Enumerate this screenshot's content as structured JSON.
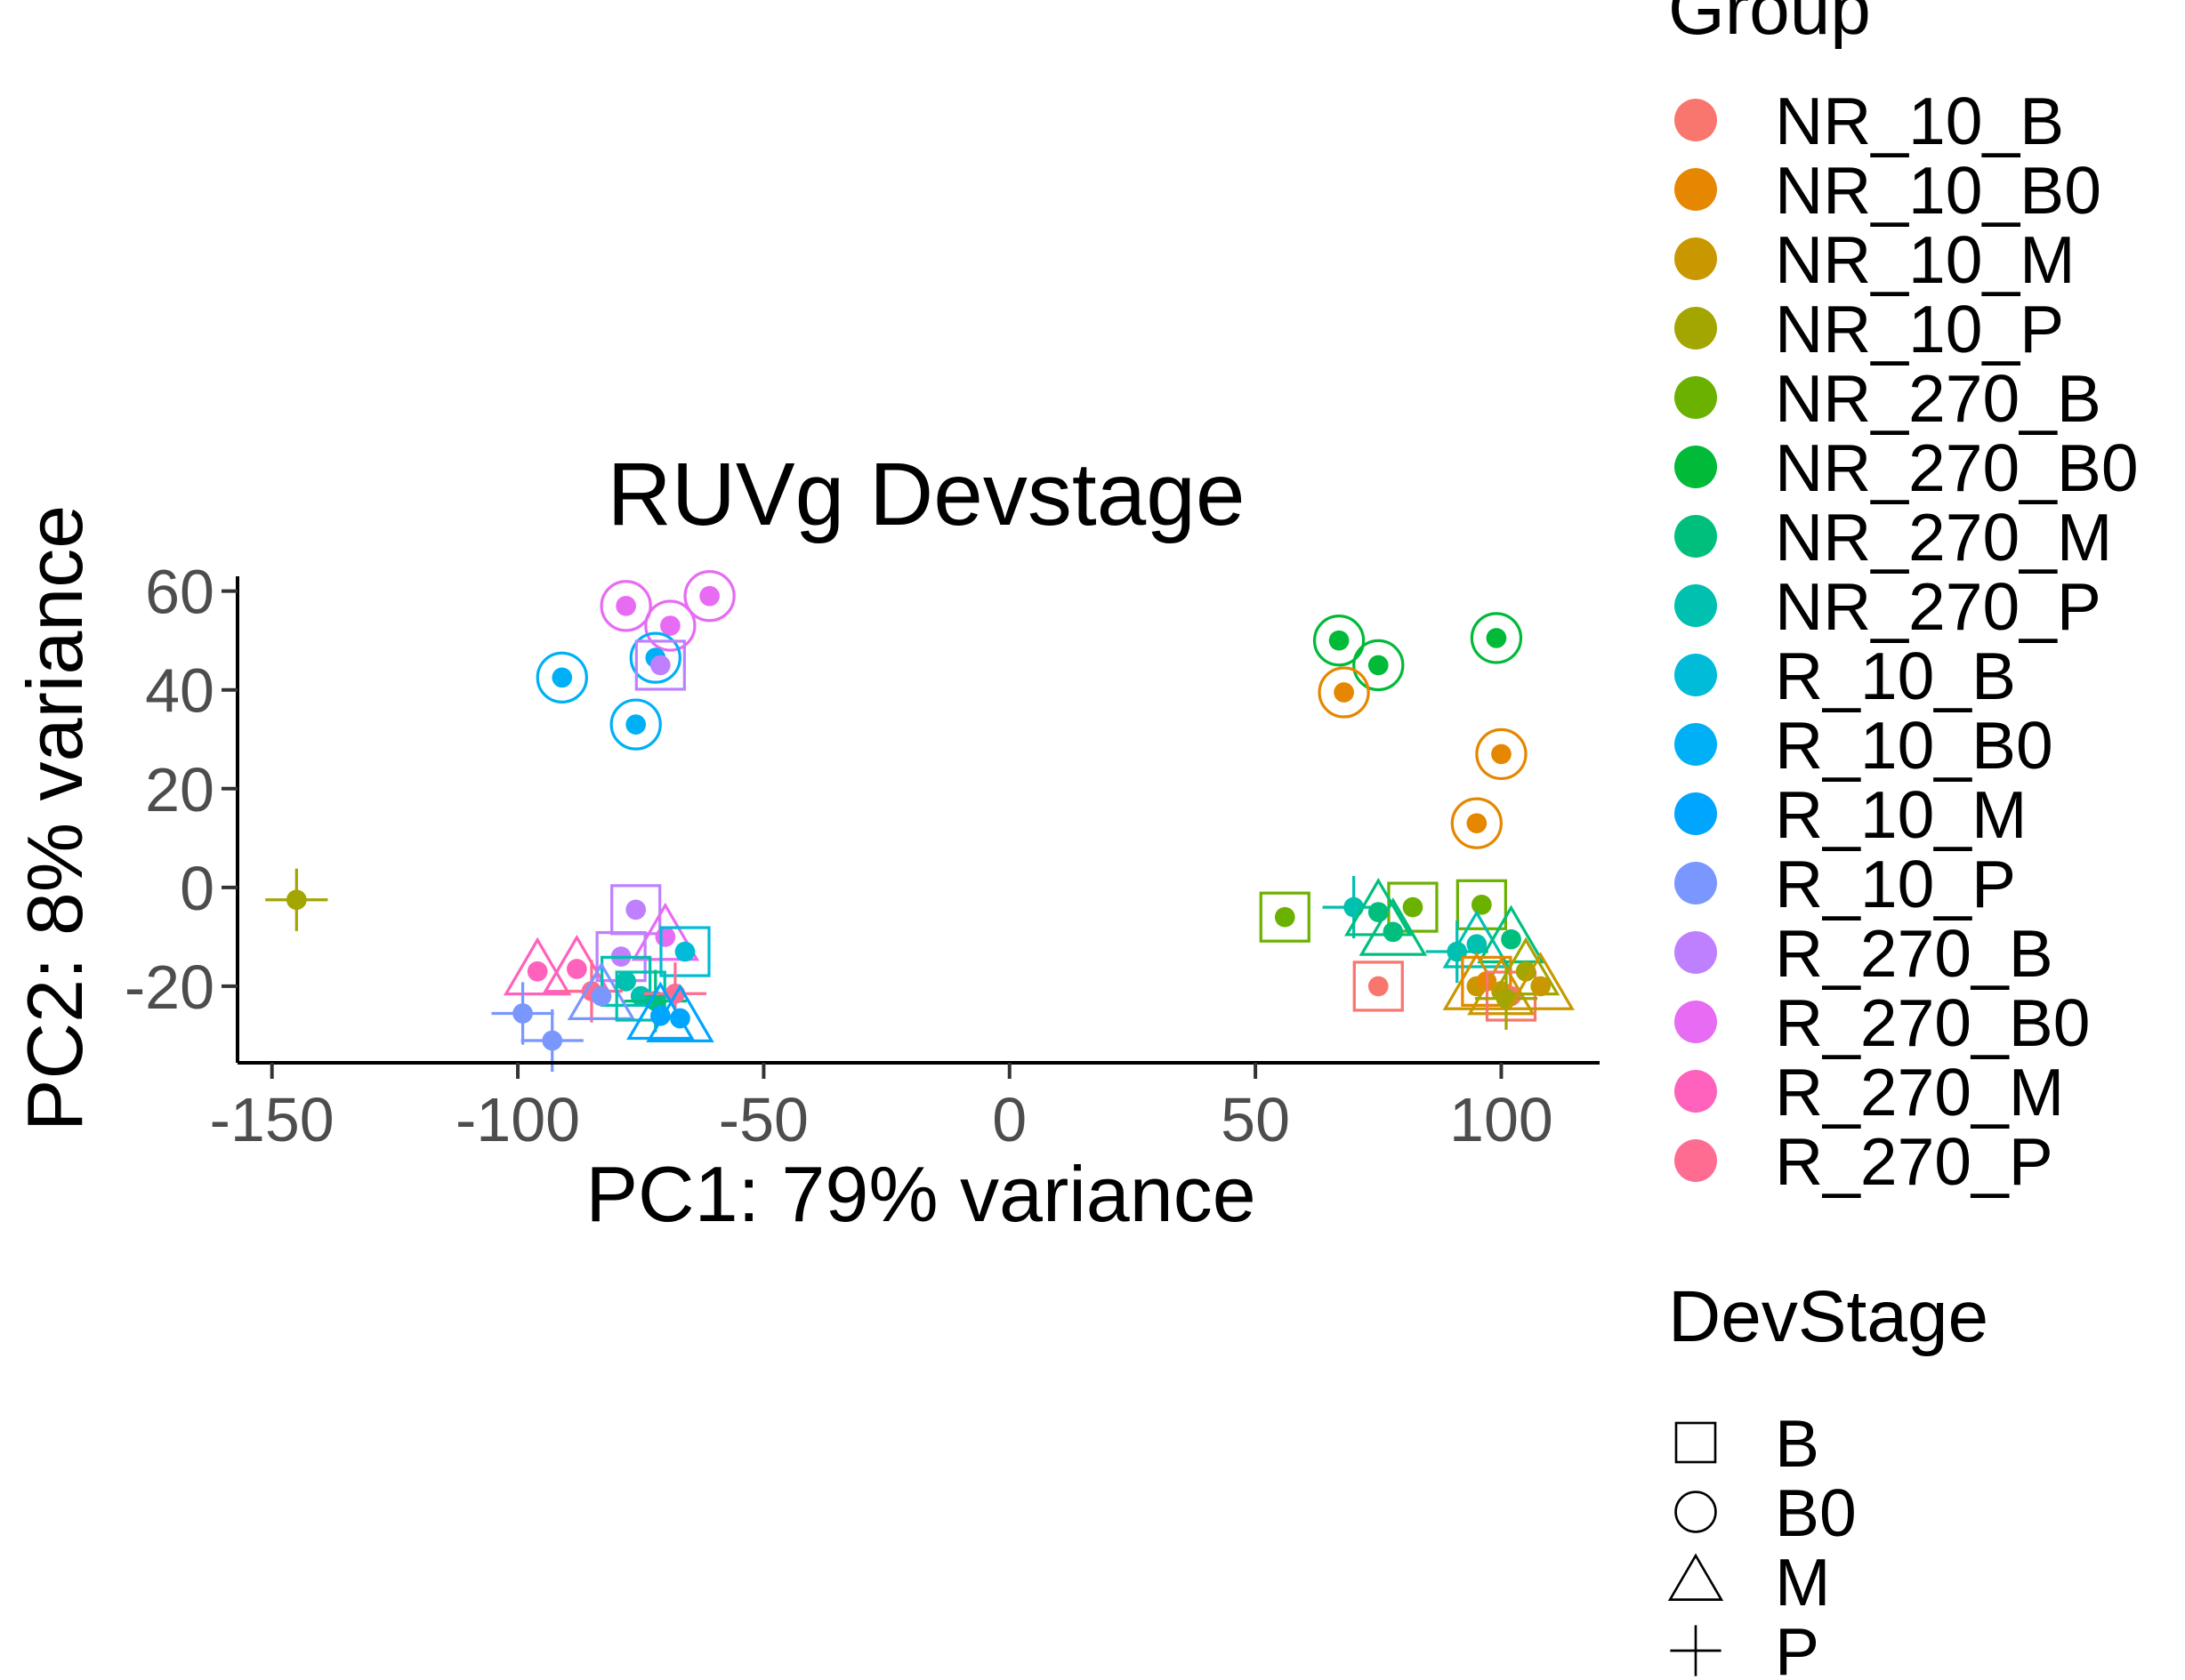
{
  "chart_data": {
    "type": "scatter",
    "title": "RUVg Devstage",
    "xlabel": "PC1: 79% variance",
    "ylabel": "PC2: 8% variance",
    "xlim": [
      -157,
      120
    ],
    "ylim": [
      -35.5,
      63
    ],
    "x_ticks": [
      -150,
      -100,
      -50,
      0,
      50,
      100
    ],
    "y_ticks": [
      -20,
      0,
      20,
      40,
      60
    ],
    "x_tick_labels": [
      "-150",
      "-100",
      "-50",
      "0",
      "50",
      "100"
    ],
    "y_tick_labels": [
      "-20",
      "0",
      "20",
      "40",
      "60"
    ],
    "grid": false,
    "legend_placement": "right",
    "legend_group_title": "Group",
    "legend_shape_title": "DevStage",
    "groups": [
      {
        "name": "NR_10_B",
        "color": "#F8766D"
      },
      {
        "name": "NR_10_B0",
        "color": "#E58700"
      },
      {
        "name": "NR_10_M",
        "color": "#C99800"
      },
      {
        "name": "NR_10_P",
        "color": "#A3A500"
      },
      {
        "name": "NR_270_B",
        "color": "#6BB100"
      },
      {
        "name": "NR_270_B0",
        "color": "#00BA38"
      },
      {
        "name": "NR_270_M",
        "color": "#00BF7D"
      },
      {
        "name": "NR_270_P",
        "color": "#00C0AF"
      },
      {
        "name": "R_10_B",
        "color": "#00BCD8"
      },
      {
        "name": "R_10_B0",
        "color": "#00B0F6"
      },
      {
        "name": "R_10_M",
        "color": "#00A5FF"
      },
      {
        "name": "R_10_P",
        "color": "#7997FF"
      },
      {
        "name": "R_270_B",
        "color": "#BF80FF"
      },
      {
        "name": "R_270_B0",
        "color": "#E76BF3"
      },
      {
        "name": "R_270_M",
        "color": "#FF62BC"
      },
      {
        "name": "R_270_P",
        "color": "#FF6C91"
      }
    ],
    "shapes": [
      {
        "name": "B",
        "shape": "square"
      },
      {
        "name": "B0",
        "shape": "circle"
      },
      {
        "name": "M",
        "shape": "triangle"
      },
      {
        "name": "P",
        "shape": "plus"
      }
    ],
    "points": [
      {
        "x": -145,
        "y": -2.5,
        "group": 3,
        "shape": "P"
      },
      {
        "x": 67,
        "y": 50,
        "group": 5,
        "shape": "B0"
      },
      {
        "x": 75,
        "y": 45,
        "group": 5,
        "shape": "B0"
      },
      {
        "x": 99,
        "y": 50.5,
        "group": 5,
        "shape": "B0"
      },
      {
        "x": 68,
        "y": 39.5,
        "group": 1,
        "shape": "B0"
      },
      {
        "x": 100,
        "y": 27,
        "group": 1,
        "shape": "B0"
      },
      {
        "x": 95,
        "y": 13,
        "group": 1,
        "shape": "B0"
      },
      {
        "x": 56,
        "y": -6,
        "group": 4,
        "shape": "B"
      },
      {
        "x": 82,
        "y": -4,
        "group": 4,
        "shape": "B"
      },
      {
        "x": 96,
        "y": -3.5,
        "group": 4,
        "shape": "B"
      },
      {
        "x": 70,
        "y": -4,
        "group": 7,
        "shape": "P"
      },
      {
        "x": 75,
        "y": -5,
        "group": 6,
        "shape": "M"
      },
      {
        "x": 78,
        "y": -9,
        "group": 6,
        "shape": "M"
      },
      {
        "x": 91,
        "y": -13,
        "group": 7,
        "shape": "P"
      },
      {
        "x": 95,
        "y": -11.5,
        "group": 7,
        "shape": "M"
      },
      {
        "x": 102,
        "y": -10.5,
        "group": 6,
        "shape": "M"
      },
      {
        "x": 75,
        "y": -20,
        "group": 0,
        "shape": "B"
      },
      {
        "x": 95,
        "y": -20,
        "group": 2,
        "shape": "M"
      },
      {
        "x": 97,
        "y": -19,
        "group": 1,
        "shape": "B"
      },
      {
        "x": 100,
        "y": -21,
        "group": 2,
        "shape": "M"
      },
      {
        "x": 102,
        "y": -22,
        "group": 0,
        "shape": "B"
      },
      {
        "x": 101,
        "y": -22.5,
        "group": 3,
        "shape": "P"
      },
      {
        "x": 105,
        "y": -17,
        "group": 3,
        "shape": "M"
      },
      {
        "x": 108,
        "y": -20,
        "group": 2,
        "shape": "M"
      },
      {
        "x": -61,
        "y": 59,
        "group": 13,
        "shape": "B0"
      },
      {
        "x": -78,
        "y": 57,
        "group": 13,
        "shape": "B0"
      },
      {
        "x": -69,
        "y": 53,
        "group": 13,
        "shape": "B0"
      },
      {
        "x": -72,
        "y": 46.5,
        "group": 9,
        "shape": "B0"
      },
      {
        "x": -71,
        "y": 45,
        "group": 12,
        "shape": "B"
      },
      {
        "x": -91,
        "y": 42.5,
        "group": 9,
        "shape": "B0"
      },
      {
        "x": -76,
        "y": 33,
        "group": 9,
        "shape": "B0"
      },
      {
        "x": -76,
        "y": -4.5,
        "group": 12,
        "shape": "B"
      },
      {
        "x": -70,
        "y": -10,
        "group": 13,
        "shape": "M"
      },
      {
        "x": -66,
        "y": -13,
        "group": 8,
        "shape": "B"
      },
      {
        "x": -79,
        "y": -14,
        "group": 12,
        "shape": "B"
      },
      {
        "x": -96,
        "y": -17,
        "group": 14,
        "shape": "M"
      },
      {
        "x": -88,
        "y": -16.5,
        "group": 14,
        "shape": "M"
      },
      {
        "x": -78,
        "y": -19,
        "group": 7,
        "shape": "B"
      },
      {
        "x": -85,
        "y": -21,
        "group": 15,
        "shape": "P"
      },
      {
        "x": -83,
        "y": -22,
        "group": 11,
        "shape": "M"
      },
      {
        "x": -75,
        "y": -22,
        "group": 7,
        "shape": "B"
      },
      {
        "x": -72,
        "y": -23,
        "group": 6,
        "shape": "P"
      },
      {
        "x": -68,
        "y": -21.5,
        "group": 15,
        "shape": "P"
      },
      {
        "x": -71,
        "y": -26,
        "group": 10,
        "shape": "M"
      },
      {
        "x": -67,
        "y": -26.5,
        "group": 10,
        "shape": "M"
      },
      {
        "x": -99,
        "y": -25.5,
        "group": 11,
        "shape": "P"
      },
      {
        "x": -93,
        "y": -31,
        "group": 11,
        "shape": "P"
      }
    ]
  }
}
